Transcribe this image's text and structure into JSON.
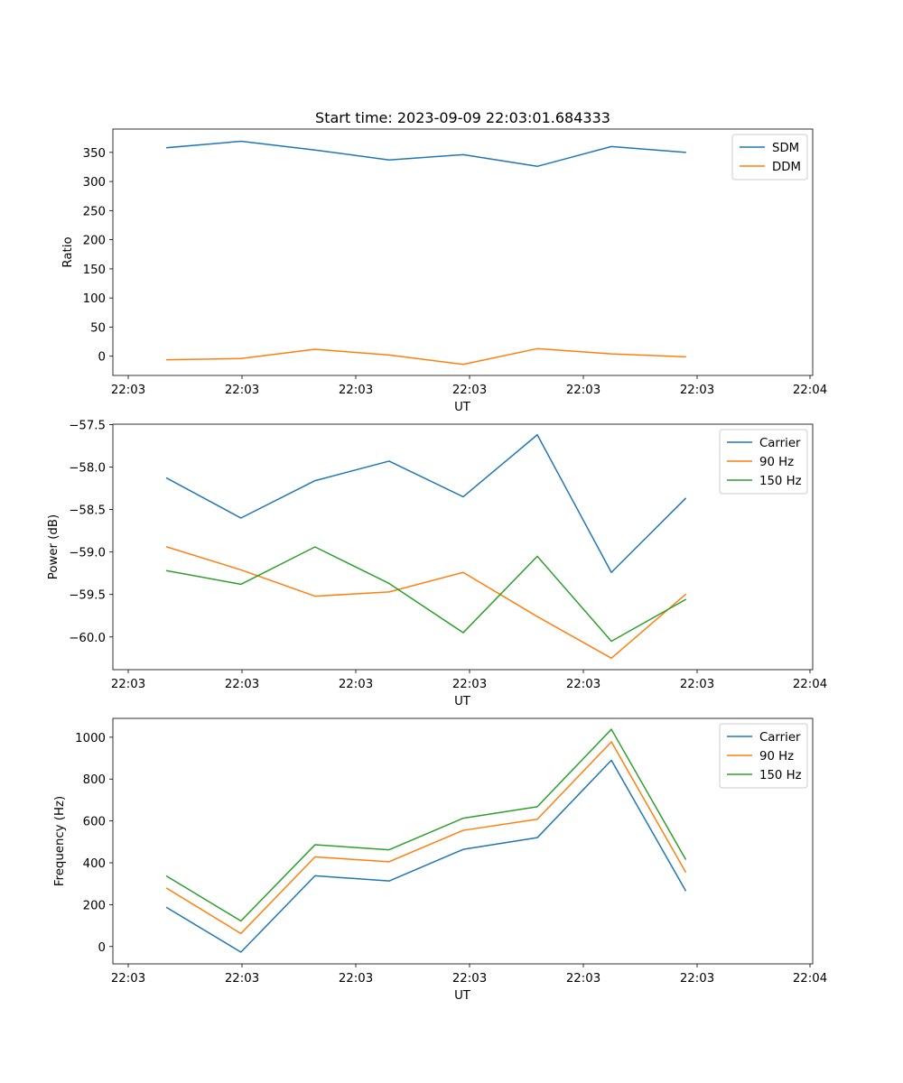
{
  "chart_data": [
    {
      "type": "line",
      "title": "Start time: 2023-09-09 22:03:01.684333",
      "xlabel": "UT",
      "ylabel": "Ratio",
      "x_tick_labels": [
        "22:03",
        "22:03",
        "22:03",
        "22:03",
        "22:03",
        "22:03",
        "22:04"
      ],
      "x": [
        1,
        2,
        3,
        4,
        5,
        6,
        7,
        8
      ],
      "xlim": [
        0.272,
        9.717
      ],
      "ylim": [
        -33,
        390
      ],
      "y_ticks": [
        0,
        50,
        100,
        150,
        200,
        250,
        300,
        350
      ],
      "legend": "top-right",
      "series": [
        {
          "name": "SDM",
          "color": "#1f77b4",
          "values": [
            358,
            369,
            354,
            337,
            346,
            326,
            360,
            350
          ]
        },
        {
          "name": "DDM",
          "color": "#ff7f0e",
          "values": [
            -6,
            -4,
            12,
            2,
            -14,
            13,
            4,
            -1
          ]
        }
      ]
    },
    {
      "type": "line",
      "title": "",
      "xlabel": "UT",
      "ylabel": "Power (dB)",
      "x_tick_labels": [
        "22:03",
        "22:03",
        "22:03",
        "22:03",
        "22:03",
        "22:03",
        "22:04"
      ],
      "x": [
        1,
        2,
        3,
        4,
        5,
        6,
        7,
        8
      ],
      "xlim": [
        0.272,
        9.717
      ],
      "ylim": [
        -60.385,
        -57.495
      ],
      "y_ticks": [
        -60.0,
        -59.5,
        -59.0,
        -58.5,
        -58.0,
        -57.5
      ],
      "y_tick_labels": [
        "−60.0",
        "−59.5",
        "−59.0",
        "−58.5",
        "−58.0",
        "−57.5"
      ],
      "legend": "top-right",
      "series": [
        {
          "name": "Carrier",
          "color": "#1f77b4",
          "values": [
            -58.13,
            -58.6,
            -58.16,
            -57.93,
            -58.35,
            -57.62,
            -59.24,
            -58.37
          ]
        },
        {
          "name": "90 Hz",
          "color": "#ff7f0e",
          "values": [
            -58.94,
            -59.21,
            -59.52,
            -59.47,
            -59.24,
            -59.76,
            -60.25,
            -59.5
          ]
        },
        {
          "name": "150 Hz",
          "color": "#2ca02c",
          "values": [
            -59.22,
            -59.38,
            -58.94,
            -59.37,
            -59.95,
            -59.05,
            -60.05,
            -59.56
          ]
        }
      ]
    },
    {
      "type": "line",
      "title": "",
      "xlabel": "UT",
      "ylabel": "Frequency (Hz)",
      "x_tick_labels": [
        "22:03",
        "22:03",
        "22:03",
        "22:03",
        "22:03",
        "22:03",
        "22:04"
      ],
      "x": [
        1,
        2,
        3,
        4,
        5,
        6,
        7,
        8
      ],
      "xlim": [
        0.272,
        9.717
      ],
      "ylim": [
        -83,
        1090
      ],
      "y_ticks": [
        0,
        200,
        400,
        600,
        800,
        1000
      ],
      "legend": "top-right",
      "series": [
        {
          "name": "Carrier",
          "color": "#1f77b4",
          "values": [
            186,
            -27,
            338,
            313,
            464,
            520,
            890,
            268
          ]
        },
        {
          "name": "90 Hz",
          "color": "#ff7f0e",
          "values": [
            278,
            62,
            428,
            405,
            555,
            608,
            978,
            357
          ]
        },
        {
          "name": "150 Hz",
          "color": "#2ca02c",
          "values": [
            336,
            122,
            486,
            462,
            613,
            668,
            1038,
            418
          ]
        }
      ]
    }
  ]
}
